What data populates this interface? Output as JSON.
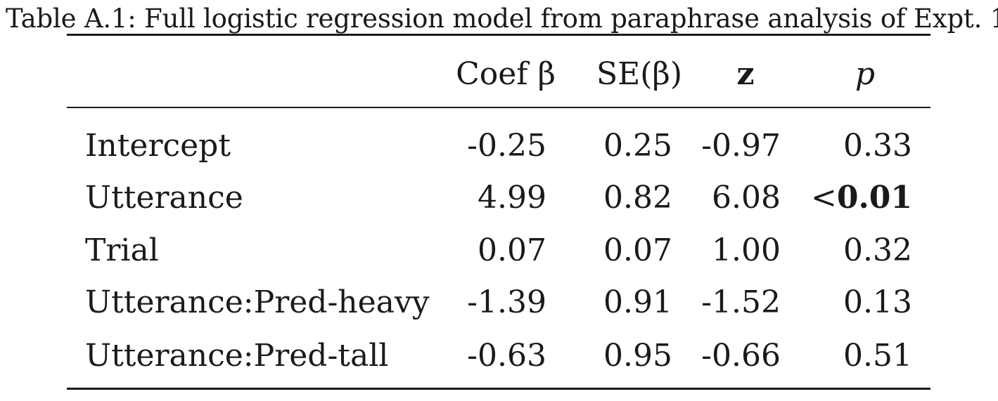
{
  "caption": "Table A.1: Full logistic regression model from paraphrase analysis of Expt. 1.",
  "columns": {
    "coef": "Coef β",
    "se": "SE(β)",
    "z": "z",
    "p": "p"
  },
  "rows": [
    {
      "term": "Intercept",
      "coef": "-0.25",
      "se": "0.25",
      "z": "-0.97",
      "p": "0.33"
    },
    {
      "term": "Utterance",
      "coef": "4.99",
      "se": "0.82",
      "z": "6.08",
      "p_prefix": "<",
      "p": "0.01"
    },
    {
      "term": "Trial",
      "coef": "0.07",
      "se": "0.07",
      "z": "1.00",
      "p": "0.32"
    },
    {
      "term": "Utterance:Pred-heavy",
      "coef": "-1.39",
      "se": "0.91",
      "z": "-1.52",
      "p": "0.13"
    },
    {
      "term": "Utterance:Pred-tall",
      "coef": "-0.63",
      "se": "0.95",
      "z": "-0.66",
      "p": "0.51"
    }
  ]
}
